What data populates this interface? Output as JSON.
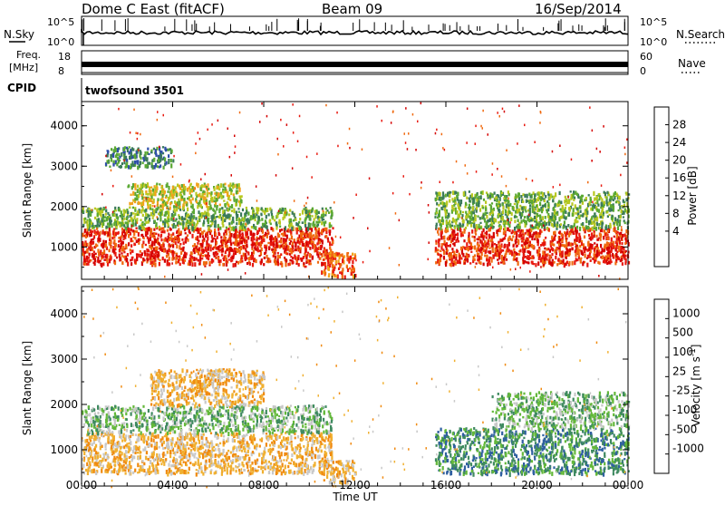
{
  "header": {
    "station": "Dome C East (fitACF)",
    "beam": "Beam 09",
    "date": "16/Sep/2014"
  },
  "top_panels": {
    "nsky_label": "N.Sky",
    "nsky_ticks": [
      "10^5",
      "10^0"
    ],
    "nsearch_label": "N.Search",
    "nsearch_ticks": [
      "10^5",
      "10^0"
    ],
    "freq_label": "Freq.",
    "freq_unit": "[MHz]",
    "freq_ticks": [
      "18",
      "8"
    ],
    "nave_label": "Nave",
    "nave_ticks": [
      "60",
      "0"
    ],
    "cpid_label": "CPID",
    "cpid_value": "twofsound 3501"
  },
  "colors": {
    "power": [
      "#1f2bd8",
      "#2f4fa8",
      "#3a7a5a",
      "#5aa832",
      "#b8c820",
      "#f2a21c",
      "#f06a10",
      "#e81a10",
      "#d40000"
    ],
    "velocity": [
      "#1f2bd8",
      "#2f5fa0",
      "#3f8a60",
      "#63b83a",
      "#c8c8c8",
      "#f0b030",
      "#f08a10",
      "#e84010",
      "#e00000"
    ]
  },
  "chart_data": [
    {
      "type": "heatmap",
      "name": "power",
      "xlabel": "Time UT",
      "ylabel": "Slant Range [km]",
      "xlim": [
        0,
        24
      ],
      "ylim": [
        200,
        4600
      ],
      "xticks": [
        "00:00",
        "04:00",
        "08:00",
        "12:00",
        "16:00",
        "20:00",
        "00:00"
      ],
      "yticks": [
        1000,
        2000,
        3000,
        4000
      ],
      "colorbar": {
        "label": "Power [dB]",
        "ticks": [
          4,
          8,
          12,
          16,
          20,
          24,
          28
        ],
        "range": [
          0,
          32
        ]
      },
      "regions": [
        {
          "t": [
            0,
            11
          ],
          "r": [
            600,
            1500
          ],
          "level": 28
        },
        {
          "t": [
            0,
            11
          ],
          "r": [
            1500,
            2000
          ],
          "level": 12
        },
        {
          "t": [
            2,
            7
          ],
          "r": [
            2000,
            2600
          ],
          "level": 16
        },
        {
          "t": [
            1,
            4
          ],
          "r": [
            3000,
            3500
          ],
          "level": 6
        },
        {
          "t": [
            10.5,
            12
          ],
          "r": [
            300,
            900
          ],
          "level": 24
        },
        {
          "t": [
            15.5,
            18
          ],
          "r": [
            600,
            1500
          ],
          "level": 28
        },
        {
          "t": [
            18,
            24
          ],
          "r": [
            600,
            1500
          ],
          "level": 26
        },
        {
          "t": [
            15.5,
            24
          ],
          "r": [
            1500,
            2400
          ],
          "level": 10
        }
      ]
    },
    {
      "type": "heatmap",
      "name": "velocity",
      "xlabel": "Time UT",
      "ylabel": "Slant Range [km]",
      "xlim": [
        0,
        24
      ],
      "ylim": [
        200,
        4600
      ],
      "xticks": [
        "00:00",
        "04:00",
        "08:00",
        "12:00",
        "16:00",
        "20:00",
        "00:00"
      ],
      "yticks": [
        1000,
        2000,
        3000,
        4000
      ],
      "colorbar": {
        "label": "Velocity [m s^-1]",
        "ticks": [
          "1000",
          "500",
          "100",
          "25",
          "-25",
          "-100",
          "-500",
          "-1000"
        ]
      },
      "regions": [
        {
          "t": [
            0,
            11
          ],
          "r": [
            500,
            1400
          ],
          "level": -100
        },
        {
          "t": [
            0,
            11
          ],
          "r": [
            1400,
            2000
          ],
          "level": 25
        },
        {
          "t": [
            3,
            8
          ],
          "r": [
            2000,
            2800
          ],
          "level": -100
        },
        {
          "t": [
            10.5,
            12
          ],
          "r": [
            300,
            800
          ],
          "level": -100
        },
        {
          "t": [
            15.5,
            24
          ],
          "r": [
            500,
            1500
          ],
          "level": 100
        },
        {
          "t": [
            18,
            24
          ],
          "r": [
            1500,
            2300
          ],
          "level": 25
        }
      ]
    }
  ]
}
